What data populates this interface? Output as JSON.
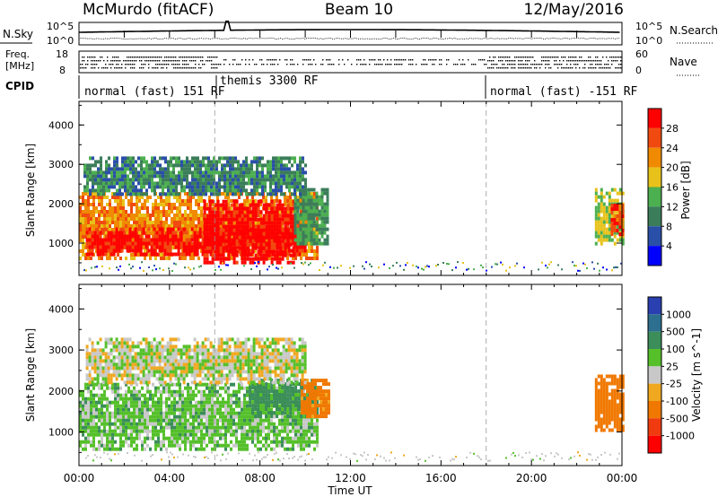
{
  "header": {
    "station": "McMurdo (fitACF)",
    "beam": "Beam 10",
    "date": "12/May/2016"
  },
  "top_panel": {
    "left_label": "N.Sky",
    "right_label": "N.Search",
    "left_ticks": [
      "10^5",
      "10^0"
    ],
    "right_ticks": [
      "10^5",
      "10^0"
    ]
  },
  "freq_panel": {
    "left_label_1": "Freq.",
    "left_label_2": "[MHz]",
    "left_ticks": [
      "18",
      "8"
    ],
    "right_label": "Nave",
    "right_ticks": [
      "60",
      "0"
    ]
  },
  "cpid": {
    "label": "CPID",
    "segments": [
      {
        "name": "normal (fast) 151 RF",
        "start_hour": 0,
        "end_hour": 6
      },
      {
        "name": "themis 3300 RF",
        "start_hour": 6,
        "end_hour": 18
      },
      {
        "name": "normal (fast) -151 RF",
        "start_hour": 18,
        "end_hour": 24
      }
    ]
  },
  "colors": {
    "power_scale": [
      "#0000ff",
      "#2a4fa8",
      "#3b7d5a",
      "#4caf50",
      "#e8c21a",
      "#f08a00",
      "#f04a10",
      "#ff0000"
    ],
    "velocity_scale": [
      "#ff0000",
      "#f03a10",
      "#f07800",
      "#f0a820",
      "#c8c8c8",
      "#55c02a",
      "#3b8d5a",
      "#2d6f8f",
      "#2a3fb0"
    ]
  },
  "chart_data": [
    {
      "type": "heatmap",
      "name": "power",
      "xlabel": "Time UT",
      "ylabel": "Slant Range [km]",
      "xlim": [
        0,
        24
      ],
      "ylim": [
        180,
        4600
      ],
      "x_ticks": [
        "00:00",
        "04:00",
        "08:00",
        "12:00",
        "16:00",
        "20:00",
        "00:00"
      ],
      "y_ticks": [
        1000,
        2000,
        3000,
        4000
      ],
      "colorbar": {
        "label": "Power [dB]",
        "ticks": [
          4,
          8,
          12,
          16,
          20,
          24,
          28
        ],
        "range": [
          0,
          32
        ]
      },
      "regions": [
        {
          "t_start": 0.0,
          "t_end": 10.5,
          "range_low": 580,
          "range_high": 2300,
          "value": 22
        },
        {
          "t_start": 0.3,
          "t_end": 10.0,
          "range_low": 700,
          "range_high": 1400,
          "value": 30
        },
        {
          "t_start": 5.5,
          "t_end": 9.5,
          "range_low": 550,
          "range_high": 2100,
          "value": 31
        },
        {
          "t_start": 9.5,
          "t_end": 11.0,
          "range_low": 1000,
          "range_high": 2400,
          "value": 12
        },
        {
          "t_start": 0.2,
          "t_end": 10.0,
          "range_low": 2200,
          "range_high": 3200,
          "value": 10
        },
        {
          "t_start": 22.8,
          "t_end": 24.0,
          "range_low": 1000,
          "range_high": 2400,
          "value": 16
        },
        {
          "t_start": 23.5,
          "t_end": 24.0,
          "range_low": 1200,
          "range_high": 2000,
          "value": 26
        }
      ]
    },
    {
      "type": "heatmap",
      "name": "velocity",
      "xlabel": "Time UT",
      "ylabel": "Slant Range [km]",
      "xlim": [
        0,
        24
      ],
      "ylim": [
        180,
        4600
      ],
      "x_ticks": [
        "00:00",
        "04:00",
        "08:00",
        "12:00",
        "16:00",
        "20:00",
        "00:00"
      ],
      "y_ticks": [
        1000,
        2000,
        3000,
        4000
      ],
      "colorbar": {
        "label": "Velocity [m s^-1]",
        "ticks": [
          -1000,
          -500,
          -100,
          -25,
          25,
          100,
          500,
          1000
        ]
      },
      "regions": [
        {
          "t_start": 0.0,
          "t_end": 10.5,
          "range_low": 580,
          "range_high": 2200,
          "value": 60
        },
        {
          "t_start": 7.5,
          "t_end": 10.5,
          "range_low": 1400,
          "range_high": 2300,
          "value": 150
        },
        {
          "t_start": 9.8,
          "t_end": 11.0,
          "range_low": 1400,
          "range_high": 2300,
          "value": -150
        },
        {
          "t_start": 0.3,
          "t_end": 10.0,
          "range_low": 2200,
          "range_high": 3300,
          "value": 0
        },
        {
          "t_start": 22.8,
          "t_end": 24.0,
          "range_low": 1000,
          "range_high": 2400,
          "value": -200
        }
      ]
    }
  ]
}
